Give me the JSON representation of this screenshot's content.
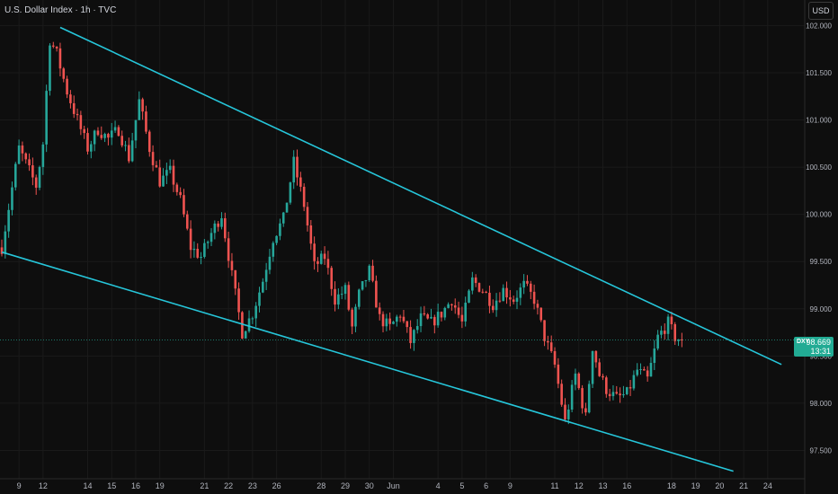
{
  "header": {
    "symbol_title": "U.S. Dollar Index · 1h · TVC",
    "currency_button": "USD"
  },
  "price_badge": {
    "symbol": "DXY",
    "price": "98.669",
    "countdown": "13:31"
  },
  "colors": {
    "background": "#0e0e0e",
    "up_candle": "#26a69a",
    "down_candle": "#ef5350",
    "trendline": "#26c6da",
    "badge": "#22ab94",
    "grid": "#1a1a1a"
  },
  "chart_data": {
    "type": "candlestick",
    "title": "",
    "y_axis": {
      "position": "right",
      "ylim": [
        97.2,
        102.27
      ],
      "ticks": [
        97.5,
        98.0,
        98.5,
        99.0,
        99.5,
        100.0,
        100.5,
        101.0,
        101.5,
        102.0
      ],
      "tick_labels": [
        "97.500",
        "98.000",
        "98.500",
        "99.000",
        "99.500",
        "100.000",
        "100.500",
        "101.000",
        "101.500",
        "102.000"
      ]
    },
    "x_axis": {
      "tick_labels": [
        "9",
        "12",
        "14",
        "15",
        "16",
        "19",
        "21",
        "22",
        "23",
        "26",
        "28",
        "29",
        "30",
        "Jun",
        "4",
        "5",
        "6",
        "9",
        "11",
        "12",
        "13",
        "16",
        "18",
        "19",
        "20",
        "21",
        "24"
      ],
      "tick_index": [
        5,
        12,
        25,
        32,
        39,
        46,
        59,
        66,
        73,
        80,
        93,
        100,
        107,
        114,
        127,
        134,
        141,
        148,
        161,
        168,
        175,
        182,
        195,
        202,
        209,
        216,
        223
      ]
    },
    "last_price": 98.669,
    "close_series_index": [
      0,
      5,
      10,
      12,
      14,
      16,
      19,
      22,
      25,
      28,
      31,
      34,
      37,
      40,
      43,
      46,
      49,
      52,
      55,
      58,
      61,
      64,
      67,
      70,
      73,
      76,
      79,
      82,
      85,
      88,
      91,
      94,
      97,
      100,
      102,
      104,
      107,
      110,
      113,
      116,
      119,
      122,
      125,
      128,
      131,
      134,
      137,
      140,
      143,
      146,
      149,
      152,
      155,
      158,
      161,
      164,
      167,
      170,
      172,
      174,
      176,
      179,
      182,
      185,
      188,
      191,
      194,
      196,
      198
    ],
    "close_series": [
      99.65,
      100.7,
      100.3,
      100.75,
      101.85,
      101.7,
      101.3,
      101.0,
      100.7,
      100.9,
      100.8,
      100.9,
      100.6,
      101.2,
      100.7,
      100.35,
      100.45,
      100.15,
      99.65,
      99.55,
      99.8,
      100.0,
      99.35,
      98.75,
      98.95,
      99.3,
      99.75,
      99.95,
      100.55,
      100.1,
      99.45,
      99.55,
      99.1,
      99.2,
      98.8,
      99.15,
      99.4,
      98.9,
      98.8,
      98.95,
      98.65,
      98.9,
      98.85,
      98.95,
      99.1,
      98.85,
      99.3,
      99.2,
      99.05,
      99.2,
      99.1,
      99.25,
      99.1,
      98.7,
      98.4,
      97.8,
      98.3,
      97.85,
      98.6,
      98.3,
      98.15,
      98.05,
      98.1,
      98.35,
      98.25,
      98.7,
      98.85,
      98.7,
      98.669
    ],
    "trendlines": [
      {
        "x1_index": 17,
        "y1": 101.98,
        "x2_index": 227,
        "y2": 98.41
      },
      {
        "x1_index": 0,
        "y1": 99.6,
        "x2_index": 213,
        "y2": 97.28
      }
    ]
  }
}
